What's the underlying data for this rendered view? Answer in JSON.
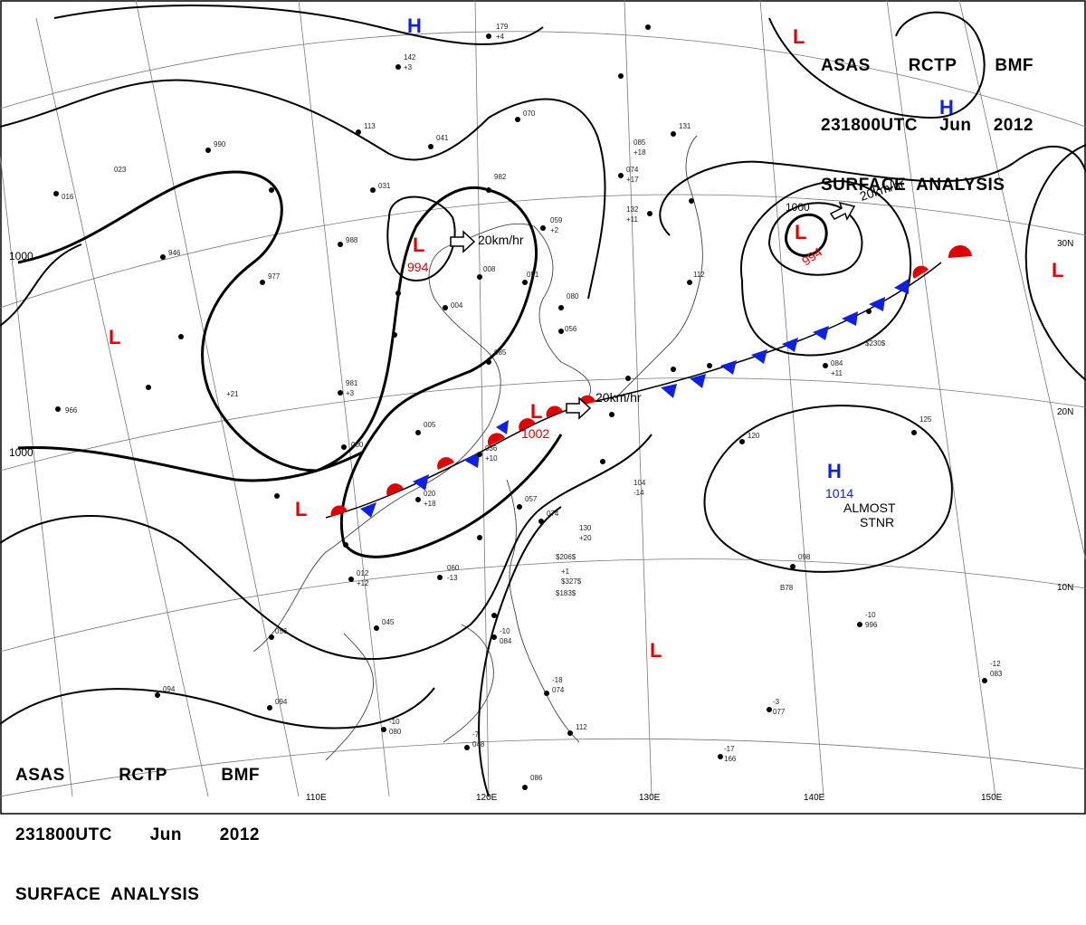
{
  "header": {
    "line1": [
      "ASAS",
      "RCTP",
      "BMF"
    ],
    "line2": [
      "231800UTC",
      "Jun",
      "2012"
    ],
    "line3": "SURFACE  ANALYSIS"
  },
  "longitude_labels": [
    "110E",
    "120E",
    "130E",
    "140E",
    "150E"
  ],
  "latitude_labels": [
    "30N",
    "20N",
    "10N"
  ],
  "isobar_labels": [
    "1000",
    "1000",
    "1000"
  ],
  "pressure_centers": [
    {
      "type": "L",
      "value": "994"
    },
    {
      "type": "L",
      "value": "994"
    },
    {
      "type": "L",
      "value": "1002"
    },
    {
      "type": "H",
      "value": "1014"
    },
    {
      "type": "H",
      "value": ""
    },
    {
      "type": "H",
      "value": ""
    },
    {
      "type": "L",
      "value": ""
    },
    {
      "type": "L",
      "value": ""
    },
    {
      "type": "L",
      "value": ""
    },
    {
      "type": "L",
      "value": ""
    },
    {
      "type": "L",
      "value": ""
    }
  ],
  "motion_labels": [
    "20km/hr",
    "20km/hr",
    "20km/hr"
  ],
  "system_notes": [
    "ALMOST",
    "STNR"
  ],
  "station_samples": [
    "179",
    "+4",
    "142",
    "+3",
    "113",
    "041",
    "990",
    "070",
    "085",
    "+18",
    "074",
    "+17",
    "131",
    "132",
    "+11",
    "023",
    "016",
    "031",
    "982",
    "988",
    "946",
    "059",
    "+2",
    "051",
    "977",
    "008",
    "004",
    "080",
    "056",
    "112",
    "981",
    "+3",
    "085",
    "084",
    "+11",
    "966",
    "+21",
    "005",
    "000",
    "036",
    "+10",
    "020",
    "+18",
    "057",
    "074",
    "130",
    "+20",
    "104",
    "-14",
    "120",
    "125",
    "098",
    "060",
    "-13",
    "012",
    "+12",
    "045",
    "056",
    "094",
    "-10",
    "080",
    "094",
    "-10",
    "996",
    "-7",
    "048",
    "-10",
    "084",
    "-18",
    "074",
    "112",
    "086",
    "-12",
    "083",
    "-3",
    "077",
    "-17",
    "166",
    "+1",
    "$327$",
    "$230$",
    "$206$",
    "$183$",
    "B78"
  ]
}
